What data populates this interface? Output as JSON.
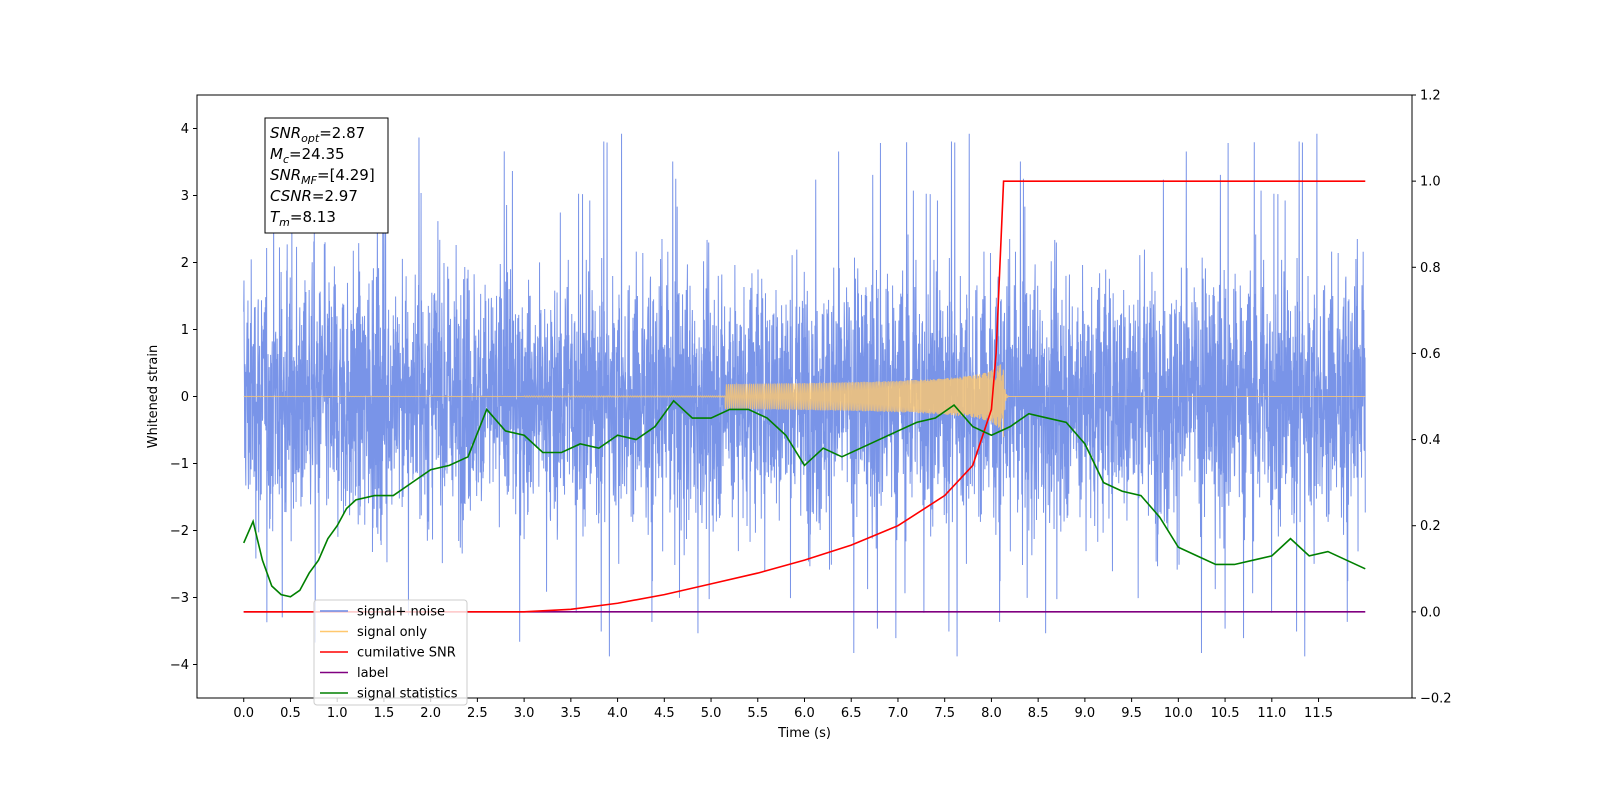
{
  "chart_data": {
    "type": "line",
    "xlabel": "Time (s)",
    "ylabel": "Whitened strain",
    "xlim": [
      -0.5,
      12.5
    ],
    "ylim": [
      -4.5,
      4.5
    ],
    "y2lim": [
      -0.2,
      1.2
    ],
    "x_ticks": [
      "0.0",
      "0.5",
      "1.0",
      "1.5",
      "2.0",
      "2.5",
      "3.0",
      "3.5",
      "4.0",
      "4.5",
      "5.0",
      "5.5",
      "6.0",
      "6.5",
      "7.0",
      "7.5",
      "8.0",
      "8.5",
      "9.0",
      "9.5",
      "10.0",
      "10.5",
      "11.0",
      "11.5"
    ],
    "y_ticks": [
      "4",
      "3",
      "2",
      "1",
      "0",
      "−1",
      "−2",
      "−3",
      "−4"
    ],
    "y2_ticks": [
      "1.2",
      "1.0",
      "0.8",
      "0.6",
      "0.4",
      "0.2",
      "0.0",
      "−0.2"
    ],
    "annotation": [
      {
        "main": "SNR",
        "sub": "opt",
        "rest": "=2.87"
      },
      {
        "main": "M",
        "sub": "c",
        "rest": "=24.35"
      },
      {
        "main": "SNR",
        "sub": "MF",
        "rest": "=[4.29]"
      },
      {
        "main": "CSNR",
        "sub": "",
        "rest": "=2.97"
      },
      {
        "main": "T",
        "sub": "m",
        "rest": "=8.13"
      }
    ],
    "legend": {
      "placement": "lower-left",
      "entries": [
        {
          "label": "signal+ noise",
          "color": "#6a88e5"
        },
        {
          "label": "signal only",
          "color": "#ffc86e"
        },
        {
          "label": "cumilative SNR",
          "color": "#ff0000"
        },
        {
          "label": "label",
          "color": "#800080"
        },
        {
          "label": "signal statistics",
          "color": "#008000"
        }
      ]
    },
    "series": [
      {
        "name": "signal+ noise",
        "axis": "left",
        "color": "#6a88e5",
        "t_range": [
          0.0,
          12.0
        ],
        "envelope_typical": [
          -2.2,
          2.4
        ],
        "extremes": [
          -3.9,
          4.05
        ]
      },
      {
        "name": "signal only",
        "axis": "left",
        "color": "#ffc86e",
        "chirp_peak_time": 8.13,
        "chirp_peak_amplitude": 0.65
      },
      {
        "name": "cumilative SNR",
        "axis": "right",
        "color": "#ff0000",
        "x": [
          0.0,
          3.0,
          3.5,
          4.0,
          4.5,
          5.0,
          5.5,
          6.0,
          6.5,
          7.0,
          7.5,
          7.8,
          8.0,
          8.05,
          8.1,
          8.13,
          12.0
        ],
        "values": [
          0.0,
          0.0,
          0.006,
          0.02,
          0.04,
          0.065,
          0.09,
          0.12,
          0.155,
          0.2,
          0.27,
          0.34,
          0.47,
          0.6,
          0.85,
          1.0,
          1.0
        ]
      },
      {
        "name": "label",
        "axis": "right",
        "color": "#800080",
        "x": [
          0.0,
          12.0
        ],
        "values": [
          0.0,
          0.0
        ]
      },
      {
        "name": "signal statistics",
        "axis": "right",
        "color": "#008000",
        "x": [
          0.0,
          0.1,
          0.2,
          0.3,
          0.4,
          0.5,
          0.6,
          0.7,
          0.8,
          0.9,
          1.0,
          1.1,
          1.2,
          1.4,
          1.6,
          1.8,
          2.0,
          2.2,
          2.4,
          2.6,
          2.8,
          3.0,
          3.2,
          3.4,
          3.6,
          3.8,
          4.0,
          4.2,
          4.4,
          4.6,
          4.8,
          5.0,
          5.2,
          5.4,
          5.6,
          5.8,
          6.0,
          6.2,
          6.4,
          6.6,
          6.8,
          7.0,
          7.2,
          7.4,
          7.6,
          7.8,
          8.0,
          8.2,
          8.4,
          8.6,
          8.8,
          9.0,
          9.2,
          9.4,
          9.6,
          9.8,
          10.0,
          10.2,
          10.4,
          10.6,
          10.8,
          11.0,
          11.2,
          11.4,
          11.6,
          11.8,
          12.0
        ],
        "values": [
          0.16,
          0.21,
          0.12,
          0.06,
          0.04,
          0.035,
          0.05,
          0.09,
          0.12,
          0.17,
          0.2,
          0.24,
          0.26,
          0.27,
          0.27,
          0.3,
          0.33,
          0.34,
          0.36,
          0.47,
          0.42,
          0.41,
          0.37,
          0.37,
          0.39,
          0.38,
          0.41,
          0.4,
          0.43,
          0.49,
          0.45,
          0.45,
          0.47,
          0.47,
          0.45,
          0.41,
          0.34,
          0.38,
          0.36,
          0.38,
          0.4,
          0.42,
          0.44,
          0.45,
          0.48,
          0.43,
          0.41,
          0.43,
          0.46,
          0.45,
          0.44,
          0.39,
          0.3,
          0.28,
          0.27,
          0.22,
          0.15,
          0.13,
          0.11,
          0.11,
          0.12,
          0.13,
          0.17,
          0.13,
          0.14,
          0.12,
          0.1
        ]
      }
    ]
  }
}
